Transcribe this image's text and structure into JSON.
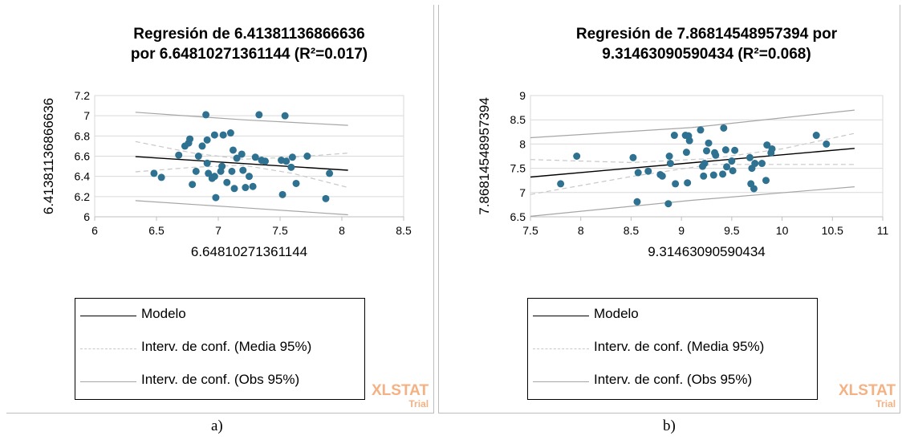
{
  "colors": {
    "points": "#2e7190",
    "model": "#000000",
    "ci_mean": "#c8c8c8",
    "ci_obs": "#a6a6a6",
    "gridlines": "#d9d9d9",
    "watermark": "#f4b183"
  },
  "watermark": {
    "main": "XLSTAT",
    "sub": "Trial"
  },
  "captions": [
    "a)",
    "b)"
  ],
  "chart_data": [
    {
      "type": "scatter",
      "title_lines": [
        "Regresión de 6.41381136866636",
        "por 6.64810271361144 (R²=0.017)"
      ],
      "xlabel": "6.64810271361144",
      "ylabel": "6.41381136866636",
      "xlim": [
        6,
        8.5
      ],
      "ylim": [
        6,
        7.2
      ],
      "xticks": [
        "6",
        "6.5",
        "7",
        "7.5",
        "8",
        "8.5"
      ],
      "yticks": [
        "6",
        "6.2",
        "6.4",
        "6.6",
        "6.8",
        "7",
        "7.2"
      ],
      "grid": "horizontal",
      "legend": [
        "Modelo",
        "Interv. de conf. (Media 95%)",
        "Interv. de conf. (Obs 95%)"
      ],
      "points": [
        [
          6.48,
          6.43
        ],
        [
          6.54,
          6.39
        ],
        [
          6.68,
          6.61
        ],
        [
          6.73,
          6.7
        ],
        [
          6.76,
          6.73
        ],
        [
          6.77,
          6.77
        ],
        [
          6.79,
          6.32
        ],
        [
          6.82,
          6.45
        ],
        [
          6.84,
          6.6
        ],
        [
          6.87,
          6.7
        ],
        [
          6.9,
          7.01
        ],
        [
          6.91,
          6.76
        ],
        [
          6.91,
          6.53
        ],
        [
          6.92,
          6.43
        ],
        [
          6.95,
          6.38
        ],
        [
          6.97,
          6.4
        ],
        [
          6.97,
          6.81
        ],
        [
          6.98,
          6.19
        ],
        [
          7.02,
          6.45
        ],
        [
          7.03,
          6.5
        ],
        [
          7.04,
          6.81
        ],
        [
          7.07,
          6.34
        ],
        [
          7.1,
          6.83
        ],
        [
          7.11,
          6.45
        ],
        [
          7.12,
          6.66
        ],
        [
          7.13,
          6.28
        ],
        [
          7.15,
          6.58
        ],
        [
          7.19,
          6.62
        ],
        [
          7.2,
          6.46
        ],
        [
          7.22,
          6.29
        ],
        [
          7.25,
          6.4
        ],
        [
          7.28,
          6.3
        ],
        [
          7.3,
          6.59
        ],
        [
          7.33,
          7.01
        ],
        [
          7.35,
          6.56
        ],
        [
          7.38,
          6.55
        ],
        [
          7.51,
          6.56
        ],
        [
          7.52,
          6.22
        ],
        [
          7.54,
          7.0
        ],
        [
          7.55,
          6.55
        ],
        [
          7.59,
          6.49
        ],
        [
          7.6,
          6.59
        ],
        [
          7.63,
          6.33
        ],
        [
          7.72,
          6.6
        ],
        [
          7.87,
          6.18
        ],
        [
          7.9,
          6.43
        ]
      ],
      "model": {
        "x": [
          6.33,
          8.05
        ],
        "y": [
          6.595,
          6.461
        ]
      },
      "ci_mean": {
        "x": [
          6.33,
          6.8,
          7.2,
          7.6,
          8.05
        ],
        "upper": [
          6.745,
          6.63,
          6.57,
          6.59,
          6.63
        ],
        "lower": [
          6.445,
          6.49,
          6.51,
          6.43,
          6.29
        ]
      },
      "ci_obs": {
        "x": [
          6.33,
          7.2,
          8.05
        ],
        "upper": [
          7.035,
          6.96,
          6.905
        ],
        "lower": [
          6.16,
          6.09,
          6.02
        ]
      }
    },
    {
      "type": "scatter",
      "title_lines": [
        "Regresión de 7.86814548957394 por",
        "9.31463090590434 (R²=0.068)"
      ],
      "xlabel": "9.31463090590434",
      "ylabel": "7.86814548957394",
      "xlim": [
        7.5,
        11
      ],
      "ylim": [
        6.5,
        9
      ],
      "xticks": [
        "7.5",
        "8",
        "8.5",
        "9",
        "9.5",
        "10",
        "10.5",
        "11"
      ],
      "yticks": [
        "6.5",
        "7",
        "7.5",
        "8",
        "8.5",
        "9"
      ],
      "grid": "horizontal",
      "legend": [
        "Modelo",
        "Interv. de conf. (Media 95%)",
        "Interv. de conf. (Obs 95%)"
      ],
      "points": [
        [
          7.8,
          7.18
        ],
        [
          7.96,
          7.75
        ],
        [
          8.52,
          7.72
        ],
        [
          8.56,
          6.81
        ],
        [
          8.57,
          7.41
        ],
        [
          8.67,
          7.44
        ],
        [
          8.79,
          7.37
        ],
        [
          8.81,
          7.34
        ],
        [
          8.87,
          6.77
        ],
        [
          8.88,
          7.75
        ],
        [
          8.89,
          7.6
        ],
        [
          8.93,
          8.18
        ],
        [
          8.94,
          7.18
        ],
        [
          9.04,
          8.18
        ],
        [
          9.05,
          7.83
        ],
        [
          9.06,
          7.2
        ],
        [
          9.07,
          8.17
        ],
        [
          9.08,
          8.07
        ],
        [
          9.19,
          8.29
        ],
        [
          9.21,
          7.54
        ],
        [
          9.22,
          7.34
        ],
        [
          9.23,
          7.6
        ],
        [
          9.25,
          7.86
        ],
        [
          9.27,
          8.02
        ],
        [
          9.32,
          7.36
        ],
        [
          9.33,
          7.82
        ],
        [
          9.34,
          7.77
        ],
        [
          9.41,
          7.38
        ],
        [
          9.42,
          8.33
        ],
        [
          9.44,
          7.88
        ],
        [
          9.45,
          7.53
        ],
        [
          9.5,
          7.65
        ],
        [
          9.51,
          7.45
        ],
        [
          9.53,
          7.87
        ],
        [
          9.68,
          7.72
        ],
        [
          9.69,
          7.18
        ],
        [
          9.7,
          7.5
        ],
        [
          9.72,
          7.08
        ],
        [
          9.73,
          7.6
        ],
        [
          9.8,
          7.6
        ],
        [
          9.84,
          7.25
        ],
        [
          9.85,
          7.98
        ],
        [
          9.89,
          7.82
        ],
        [
          9.9,
          7.9
        ],
        [
          10.34,
          8.18
        ],
        [
          10.44,
          8.0
        ]
      ],
      "model": {
        "x": [
          7.5,
          10.72
        ],
        "y": [
          7.32,
          7.91
        ]
      },
      "ci_mean": {
        "x": [
          7.5,
          8.5,
          9.3,
          10.0,
          10.72
        ],
        "upper": [
          7.68,
          7.62,
          7.7,
          7.9,
          8.22
        ],
        "lower": [
          6.96,
          7.33,
          7.58,
          7.58,
          7.58
        ]
      },
      "ci_obs": {
        "x": [
          7.5,
          9.1,
          10.72
        ],
        "upper": [
          8.13,
          8.34,
          8.7
        ],
        "lower": [
          6.51,
          6.84,
          7.12
        ]
      }
    }
  ]
}
